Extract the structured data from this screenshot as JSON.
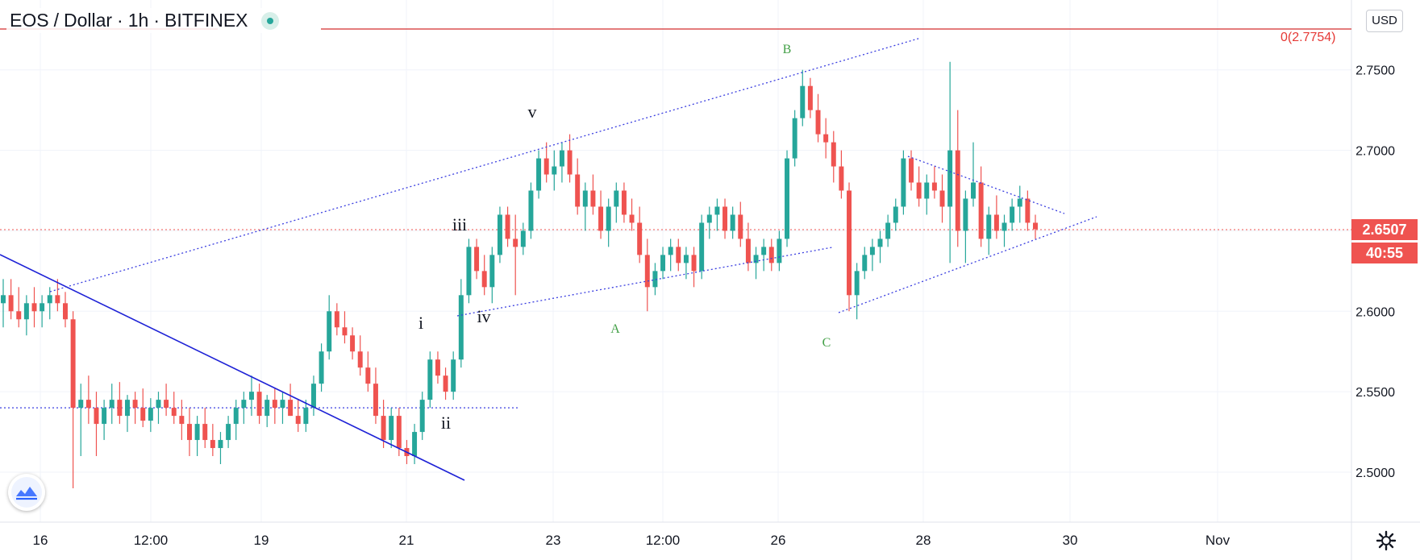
{
  "header": {
    "symbol": "EOS",
    "separator": "/",
    "quote": "Dollar",
    "interval": "1h",
    "exchange": "BITFINEX"
  },
  "currency_button": "USD",
  "fib_label": "0(2.7754)",
  "last_price": "2.6507",
  "countdown": "40:55",
  "colors": {
    "up": "#26a69a",
    "down": "#ef5350",
    "trend": "#1e22d6",
    "channel": "#3a3ee0",
    "fib": "#d32f2f",
    "wave_green": "#43a047",
    "wave_black": "#131722"
  },
  "chart_data": {
    "type": "candlestick",
    "y_axis": {
      "ticks": [
        2.5,
        2.55,
        2.6,
        2.65,
        2.7,
        2.75
      ],
      "ylim": [
        2.46,
        2.785
      ]
    },
    "x_axis": {
      "ticks": [
        "16",
        "12:00",
        "19",
        "21",
        "23",
        "12:00",
        "26",
        "28",
        "30",
        "Nov"
      ]
    },
    "ohlc": [
      [
        2.605,
        2.62,
        2.59,
        2.61
      ],
      [
        2.61,
        2.62,
        2.595,
        2.6
      ],
      [
        2.6,
        2.615,
        2.59,
        2.595
      ],
      [
        2.595,
        2.61,
        2.585,
        2.605
      ],
      [
        2.605,
        2.615,
        2.59,
        2.6
      ],
      [
        2.6,
        2.61,
        2.59,
        2.605
      ],
      [
        2.605,
        2.615,
        2.595,
        2.61
      ],
      [
        2.61,
        2.62,
        2.6,
        2.605
      ],
      [
        2.605,
        2.612,
        2.59,
        2.595
      ],
      [
        2.595,
        2.6,
        2.49,
        2.54
      ],
      [
        2.54,
        2.555,
        2.51,
        2.545
      ],
      [
        2.545,
        2.56,
        2.53,
        2.54
      ],
      [
        2.54,
        2.55,
        2.51,
        2.53
      ],
      [
        2.53,
        2.545,
        2.52,
        2.54
      ],
      [
        2.54,
        2.555,
        2.53,
        2.545
      ],
      [
        2.545,
        2.556,
        2.53,
        2.535
      ],
      [
        2.535,
        2.548,
        2.525,
        2.545
      ],
      [
        2.545,
        2.55,
        2.53,
        2.54
      ],
      [
        2.54,
        2.552,
        2.528,
        2.532
      ],
      [
        2.532,
        2.546,
        2.525,
        2.54
      ],
      [
        2.54,
        2.55,
        2.53,
        2.545
      ],
      [
        2.545,
        2.555,
        2.535,
        2.54
      ],
      [
        2.54,
        2.55,
        2.53,
        2.535
      ],
      [
        2.535,
        2.545,
        2.52,
        2.53
      ],
      [
        2.53,
        2.54,
        2.51,
        2.52
      ],
      [
        2.52,
        2.535,
        2.51,
        2.53
      ],
      [
        2.53,
        2.54,
        2.515,
        2.52
      ],
      [
        2.52,
        2.53,
        2.51,
        2.515
      ],
      [
        2.515,
        2.525,
        2.505,
        2.52
      ],
      [
        2.52,
        2.535,
        2.515,
        2.53
      ],
      [
        2.53,
        2.545,
        2.52,
        2.54
      ],
      [
        2.54,
        2.55,
        2.53,
        2.545
      ],
      [
        2.545,
        2.56,
        2.535,
        2.55
      ],
      [
        2.55,
        2.555,
        2.53,
        2.535
      ],
      [
        2.535,
        2.548,
        2.528,
        2.545
      ],
      [
        2.545,
        2.552,
        2.53,
        2.54
      ],
      [
        2.54,
        2.55,
        2.53,
        2.545
      ],
      [
        2.545,
        2.555,
        2.535,
        2.535
      ],
      [
        2.535,
        2.545,
        2.525,
        2.53
      ],
      [
        2.53,
        2.545,
        2.525,
        2.54
      ],
      [
        2.54,
        2.56,
        2.535,
        2.555
      ],
      [
        2.555,
        2.58,
        2.55,
        2.575
      ],
      [
        2.575,
        2.61,
        2.57,
        2.6
      ],
      [
        2.6,
        2.605,
        2.585,
        2.59
      ],
      [
        2.59,
        2.6,
        2.58,
        2.585
      ],
      [
        2.585,
        2.59,
        2.57,
        2.575
      ],
      [
        2.575,
        2.585,
        2.56,
        2.565
      ],
      [
        2.565,
        2.575,
        2.55,
        2.555
      ],
      [
        2.555,
        2.565,
        2.53,
        2.535
      ],
      [
        2.535,
        2.545,
        2.515,
        2.52
      ],
      [
        2.52,
        2.54,
        2.515,
        2.535
      ],
      [
        2.535,
        2.54,
        2.51,
        2.515
      ],
      [
        2.515,
        2.52,
        2.505,
        2.51
      ],
      [
        2.51,
        2.53,
        2.505,
        2.525
      ],
      [
        2.525,
        2.55,
        2.52,
        2.545
      ],
      [
        2.545,
        2.575,
        2.54,
        2.57
      ],
      [
        2.57,
        2.575,
        2.555,
        2.56
      ],
      [
        2.56,
        2.565,
        2.545,
        2.55
      ],
      [
        2.55,
        2.575,
        2.545,
        2.57
      ],
      [
        2.57,
        2.62,
        2.565,
        2.61
      ],
      [
        2.61,
        2.645,
        2.605,
        2.64
      ],
      [
        2.64,
        2.645,
        2.62,
        2.625
      ],
      [
        2.625,
        2.635,
        2.61,
        2.615
      ],
      [
        2.615,
        2.64,
        2.605,
        2.635
      ],
      [
        2.635,
        2.665,
        2.63,
        2.66
      ],
      [
        2.66,
        2.665,
        2.64,
        2.645
      ],
      [
        2.645,
        2.66,
        2.61,
        2.64
      ],
      [
        2.64,
        2.655,
        2.635,
        2.65
      ],
      [
        2.65,
        2.68,
        2.645,
        2.675
      ],
      [
        2.675,
        2.7,
        2.67,
        2.695
      ],
      [
        2.695,
        2.705,
        2.68,
        2.685
      ],
      [
        2.685,
        2.7,
        2.675,
        2.69
      ],
      [
        2.69,
        2.705,
        2.68,
        2.7
      ],
      [
        2.7,
        2.71,
        2.68,
        2.685
      ],
      [
        2.685,
        2.695,
        2.66,
        2.665
      ],
      [
        2.665,
        2.68,
        2.65,
        2.675
      ],
      [
        2.675,
        2.685,
        2.66,
        2.665
      ],
      [
        2.665,
        2.675,
        2.645,
        2.65
      ],
      [
        2.65,
        2.67,
        2.64,
        2.665
      ],
      [
        2.665,
        2.68,
        2.655,
        2.675
      ],
      [
        2.675,
        2.68,
        2.655,
        2.66
      ],
      [
        2.66,
        2.67,
        2.65,
        2.655
      ],
      [
        2.655,
        2.665,
        2.63,
        2.635
      ],
      [
        2.635,
        2.645,
        2.6,
        2.615
      ],
      [
        2.615,
        2.63,
        2.61,
        2.625
      ],
      [
        2.625,
        2.64,
        2.62,
        2.635
      ],
      [
        2.635,
        2.645,
        2.625,
        2.64
      ],
      [
        2.64,
        2.645,
        2.625,
        2.63
      ],
      [
        2.63,
        2.64,
        2.62,
        2.635
      ],
      [
        2.635,
        2.64,
        2.615,
        2.625
      ],
      [
        2.625,
        2.66,
        2.62,
        2.655
      ],
      [
        2.655,
        2.665,
        2.645,
        2.66
      ],
      [
        2.66,
        2.67,
        2.65,
        2.665
      ],
      [
        2.665,
        2.67,
        2.645,
        2.65
      ],
      [
        2.65,
        2.665,
        2.645,
        2.66
      ],
      [
        2.66,
        2.668,
        2.64,
        2.645
      ],
      [
        2.645,
        2.655,
        2.625,
        2.63
      ],
      [
        2.63,
        2.64,
        2.62,
        2.635
      ],
      [
        2.635,
        2.645,
        2.625,
        2.64
      ],
      [
        2.64,
        2.645,
        2.625,
        2.63
      ],
      [
        2.63,
        2.65,
        2.625,
        2.645
      ],
      [
        2.645,
        2.7,
        2.64,
        2.695
      ],
      [
        2.695,
        2.725,
        2.69,
        2.72
      ],
      [
        2.72,
        2.75,
        2.715,
        2.74
      ],
      [
        2.74,
        2.745,
        2.72,
        2.725
      ],
      [
        2.725,
        2.735,
        2.705,
        2.71
      ],
      [
        2.71,
        2.72,
        2.695,
        2.705
      ],
      [
        2.705,
        2.712,
        2.68,
        2.69
      ],
      [
        2.69,
        2.7,
        2.67,
        2.675
      ],
      [
        2.675,
        2.68,
        2.6,
        2.61
      ],
      [
        2.61,
        2.63,
        2.595,
        2.625
      ],
      [
        2.625,
        2.64,
        2.62,
        2.635
      ],
      [
        2.635,
        2.645,
        2.625,
        2.64
      ],
      [
        2.64,
        2.65,
        2.63,
        2.645
      ],
      [
        2.645,
        2.66,
        2.64,
        2.655
      ],
      [
        2.655,
        2.67,
        2.65,
        2.665
      ],
      [
        2.665,
        2.7,
        2.66,
        2.695
      ],
      [
        2.695,
        2.7,
        2.675,
        2.68
      ],
      [
        2.68,
        2.69,
        2.665,
        2.67
      ],
      [
        2.67,
        2.685,
        2.66,
        2.68
      ],
      [
        2.68,
        2.69,
        2.67,
        2.675
      ],
      [
        2.675,
        2.685,
        2.655,
        2.665
      ],
      [
        2.665,
        2.755,
        2.63,
        2.7
      ],
      [
        2.7,
        2.725,
        2.64,
        2.65
      ],
      [
        2.65,
        2.675,
        2.63,
        2.67
      ],
      [
        2.67,
        2.705,
        2.665,
        2.68
      ],
      [
        2.68,
        2.69,
        2.64,
        2.645
      ],
      [
        2.645,
        2.665,
        2.635,
        2.66
      ],
      [
        2.66,
        2.672,
        2.645,
        2.65
      ],
      [
        2.65,
        2.66,
        2.64,
        2.655
      ],
      [
        2.655,
        2.67,
        2.65,
        2.665
      ],
      [
        2.665,
        2.678,
        2.655,
        2.67
      ],
      [
        2.67,
        2.675,
        2.65,
        2.655
      ],
      [
        2.655,
        2.66,
        2.645,
        2.651
      ]
    ],
    "fib_level": 2.7754,
    "wave_labels": [
      "i",
      "ii",
      "iii",
      "iv",
      "v",
      "A",
      "B",
      "C"
    ],
    "current_price": 2.6507
  }
}
